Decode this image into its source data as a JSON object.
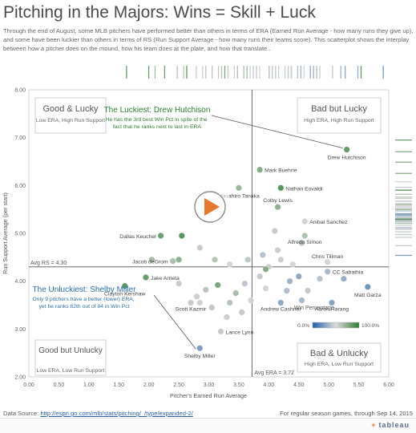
{
  "header": {
    "title": "Pitching in the Majors: Wins = Skill + Luck",
    "subtitle": "Through the end of August, some MLB pitchers have performed better than others in terms of ERA (Earned Run Average - how many runs they give up), and some have been luckier than others in terms of RS (Run Support Average - how many runs their teams score). This scatterplot shows the interplay between how a pitcher does on the mound, how his team does at the plate, and how that translate.."
  },
  "footer": {
    "source_label": "Data Source: ",
    "source_link": "http://espn.go.com/mlb/stats/pitching/_/type/expanded-2/",
    "note": "For regular season games, through Sep 14, 2015",
    "logo": "tableau"
  },
  "chart_data": {
    "type": "scatter",
    "xlabel": "Pitcher's Earned Run Average",
    "ylabel": "Run Support Average (per start)",
    "xlim": [
      0,
      6
    ],
    "ylim": [
      2,
      8
    ],
    "xticks": [
      "0.00",
      "0.50",
      "1.00",
      "1.50",
      "2.00",
      "2.50",
      "3.00",
      "3.50",
      "4.00",
      "4.50",
      "5.00",
      "5.50",
      "6.00"
    ],
    "yticks": [
      "2.00",
      "3.00",
      "4.00",
      "5.00",
      "6.00",
      "7.00",
      "8.00"
    ],
    "grid": false,
    "avg_rs": 4.3,
    "avg_era": 3.72,
    "avg_rs_label": "Avg RS = 4.30",
    "avg_era_label": "Avg ERA = 3.72",
    "quadrants": [
      {
        "title": "Good & Lucky",
        "desc": "Low ERA, High Run Support"
      },
      {
        "title": "Bad but Lucky",
        "desc": "High ERA, High Run Support"
      },
      {
        "title": "Good but Unlucky",
        "desc": "Low ERA, Low Run Support"
      },
      {
        "title": "Bad & Unlucky",
        "desc": "High ERA, Low Run Support"
      }
    ],
    "annotations": [
      {
        "title": "The Luckiest: Drew Hutchison",
        "text": "He has the 3rd best Win Pct in spite of the fact that he ranks next to last in ERA",
        "x": 5.3,
        "y": 6.75
      },
      {
        "title": "The Unluckiest: Shelby Miller",
        "text": "Only 9 pitchers have a better (lower) ERA, yet he ranks 82th out of 84 in Win Pct",
        "x": 2.85,
        "y": 2.6
      }
    ],
    "legend": {
      "title": "Win Percentage",
      "min_label": "0.0%",
      "max_label": "100.0%",
      "placement": "bottom-right"
    },
    "points": [
      {
        "name": "Drew Hutchison",
        "x": 5.3,
        "y": 6.75,
        "win": 0.86
      },
      {
        "name": "Mark Buehrle",
        "x": 3.85,
        "y": 6.33,
        "win": 0.75
      },
      {
        "name": "Nathan Eovaldi",
        "x": 4.2,
        "y": 5.95,
        "win": 0.9
      },
      {
        "name": "Masahiro Tanaka",
        "x": 3.5,
        "y": 5.95,
        "win": 0.68
      },
      {
        "name": "Colby Lewis",
        "x": 4.15,
        "y": 5.55,
        "win": 0.72
      },
      {
        "name": "Anibal Sanchez",
        "x": 4.6,
        "y": 5.25,
        "win": 0.5
      },
      {
        "name": "Alfredo Simon",
        "x": 4.6,
        "y": 4.95,
        "win": 0.62
      },
      {
        "name": "Dallas Keuchel",
        "x": 2.2,
        "y": 4.95,
        "win": 0.83
      },
      {
        "name": "Jacob deGrom",
        "x": 2.4,
        "y": 4.42,
        "win": 0.63
      },
      {
        "name": "Chris Tillman",
        "x": 4.98,
        "y": 4.4,
        "win": 0.5
      },
      {
        "name": "CC Sabathia",
        "x": 4.98,
        "y": 4.2,
        "win": 0.38
      },
      {
        "name": "Jake Arrieta",
        "x": 1.95,
        "y": 4.08,
        "win": 0.85
      },
      {
        "name": "Matt Garza",
        "x": 5.65,
        "y": 3.88,
        "win": 0.22
      },
      {
        "name": "Clayton Kershaw",
        "x": 1.6,
        "y": 3.9,
        "win": 0.88
      },
      {
        "name": "Scott Kazmir",
        "x": 2.7,
        "y": 3.55,
        "win": 0.55
      },
      {
        "name": "Andrew Cashner",
        "x": 4.2,
        "y": 3.55,
        "win": 0.3
      },
      {
        "name": "Aaron Harang",
        "x": 5.05,
        "y": 3.55,
        "win": 0.28
      },
      {
        "name": "Lance Lynn",
        "x": 3.2,
        "y": 2.95,
        "win": 0.55
      },
      {
        "name": "Shelby Miller",
        "x": 2.85,
        "y": 2.6,
        "win": 0.25
      },
      {
        "name": "",
        "x": 2.55,
        "y": 4.95,
        "win": 0.9
      },
      {
        "name": "",
        "x": 2.5,
        "y": 4.45,
        "win": 0.72
      },
      {
        "name": "",
        "x": 2.05,
        "y": 4.45,
        "win": 0.65
      },
      {
        "name": "",
        "x": 2.85,
        "y": 4.7,
        "win": 0.55
      },
      {
        "name": "",
        "x": 3.1,
        "y": 4.45,
        "win": 0.6
      },
      {
        "name": "",
        "x": 3.35,
        "y": 4.35,
        "win": 0.5
      },
      {
        "name": "",
        "x": 3.15,
        "y": 3.92,
        "win": 0.78
      },
      {
        "name": "",
        "x": 2.95,
        "y": 3.82,
        "win": 0.58
      },
      {
        "name": "",
        "x": 2.8,
        "y": 3.68,
        "win": 0.52
      },
      {
        "name": "",
        "x": 3.45,
        "y": 3.75,
        "win": 0.63
      },
      {
        "name": "",
        "x": 3.6,
        "y": 3.95,
        "win": 0.44
      },
      {
        "name": "",
        "x": 3.7,
        "y": 3.6,
        "win": 0.5
      },
      {
        "name": "",
        "x": 3.55,
        "y": 3.35,
        "win": 0.55
      },
      {
        "name": "",
        "x": 3.3,
        "y": 3.25,
        "win": 0.47
      },
      {
        "name": "",
        "x": 3.05,
        "y": 3.45,
        "win": 0.56
      },
      {
        "name": "",
        "x": 2.5,
        "y": 3.95,
        "win": 0.54
      },
      {
        "name": "",
        "x": 3.85,
        "y": 4.1,
        "win": 0.45
      },
      {
        "name": "",
        "x": 4.0,
        "y": 4.3,
        "win": 0.48
      },
      {
        "name": "",
        "x": 4.2,
        "y": 4.45,
        "win": 0.52
      },
      {
        "name": "",
        "x": 4.4,
        "y": 4.35,
        "win": 0.5
      },
      {
        "name": "",
        "x": 3.9,
        "y": 4.55,
        "win": 0.42
      },
      {
        "name": "",
        "x": 4.15,
        "y": 4.65,
        "win": 0.53
      },
      {
        "name": "",
        "x": 4.55,
        "y": 4.8,
        "win": 0.6
      },
      {
        "name": "",
        "x": 4.1,
        "y": 5.05,
        "win": 0.46
      },
      {
        "name": "",
        "x": 3.95,
        "y": 4.25,
        "win": 0.75
      },
      {
        "name": "",
        "x": 4.35,
        "y": 4.0,
        "win": 0.35
      },
      {
        "name": "",
        "x": 4.5,
        "y": 4.1,
        "win": 0.3
      },
      {
        "name": "",
        "x": 4.3,
        "y": 3.8,
        "win": 0.4
      },
      {
        "name": "",
        "x": 4.65,
        "y": 3.8,
        "win": 0.45
      },
      {
        "name": "",
        "x": 4.85,
        "y": 4.05,
        "win": 0.42
      },
      {
        "name": "",
        "x": 5.25,
        "y": 4.05,
        "win": 0.32
      },
      {
        "name": "",
        "x": 4.55,
        "y": 3.6,
        "win": 0.38
      },
      {
        "name": "",
        "x": 3.95,
        "y": 3.85,
        "win": 0.5
      },
      {
        "name": "",
        "x": 3.65,
        "y": 4.45,
        "win": 0.57
      },
      {
        "name": "",
        "x": 3.35,
        "y": 3.55,
        "win": 0.6
      },
      {
        "name": "",
        "x": 2.85,
        "y": 3.55,
        "win": 0.48
      }
    ]
  }
}
